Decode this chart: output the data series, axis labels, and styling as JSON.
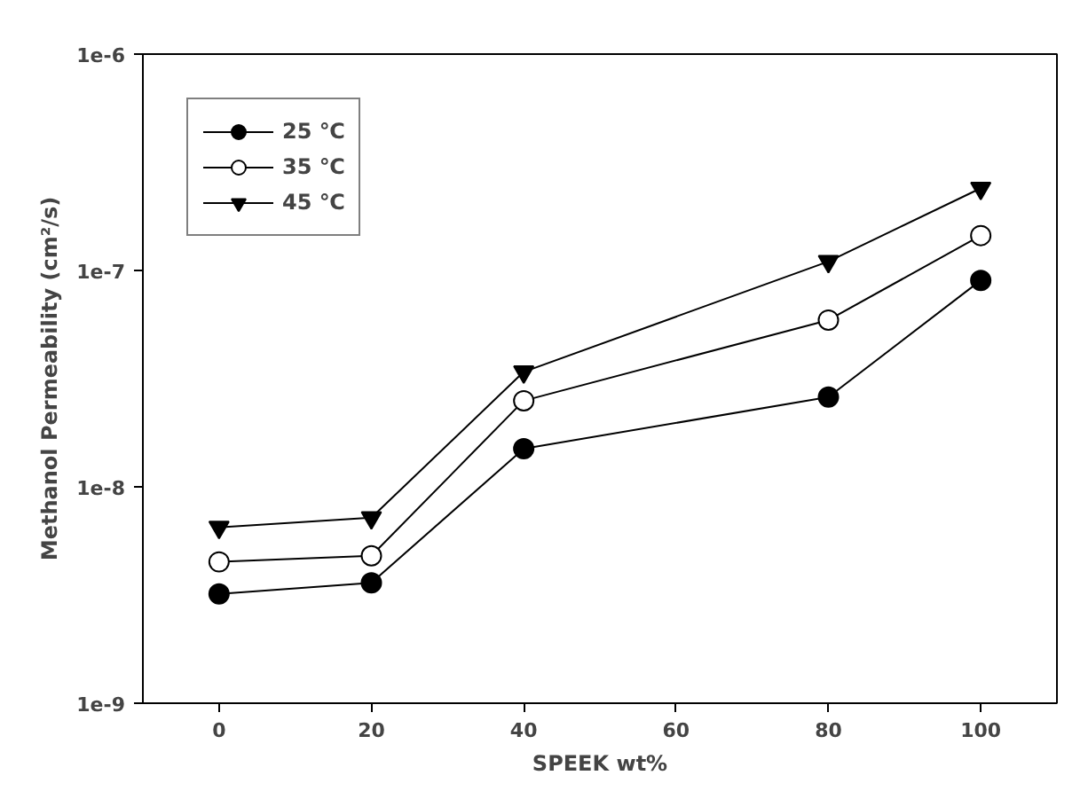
{
  "chart_data": {
    "type": "line",
    "xlabel": "SPEEK wt%",
    "ylabel": "Methanol Permeability (cm²/s)",
    "x": [
      0,
      20,
      40,
      80,
      100
    ],
    "series": [
      {
        "name": "25 ℃",
        "color": "#000000",
        "marker": "circle",
        "values": [
          3.2e-09,
          3.6e-09,
          1.5e-08,
          2.6e-08,
          9e-08
        ]
      },
      {
        "name": "35 ℃",
        "color": "#000000",
        "marker": "circle",
        "values": [
          4.5e-09,
          4.8e-09,
          2.5e-08,
          5.9e-08,
          1.45e-07
        ]
      },
      {
        "name": "45 ℃",
        "color": "#000000",
        "marker": "triangle",
        "values": [
          6.5e-09,
          7.2e-09,
          3.4e-08,
          1.1e-07,
          2.4e-07
        ]
      }
    ],
    "xlim": [
      -10,
      110
    ],
    "xticks": [
      0,
      20,
      40,
      60,
      80,
      100
    ],
    "ylim": [
      1e-09,
      1e-06
    ],
    "yticks": [
      {
        "value": 1e-09,
        "label": "1e-9"
      },
      {
        "value": 1e-08,
        "label": "1e-8"
      },
      {
        "value": 1e-07,
        "label": "1e-7"
      },
      {
        "value": 1e-06,
        "label": "1e-6"
      }
    ],
    "log": "y",
    "grid": false,
    "legend": "top left",
    "line_style": "solid"
  }
}
